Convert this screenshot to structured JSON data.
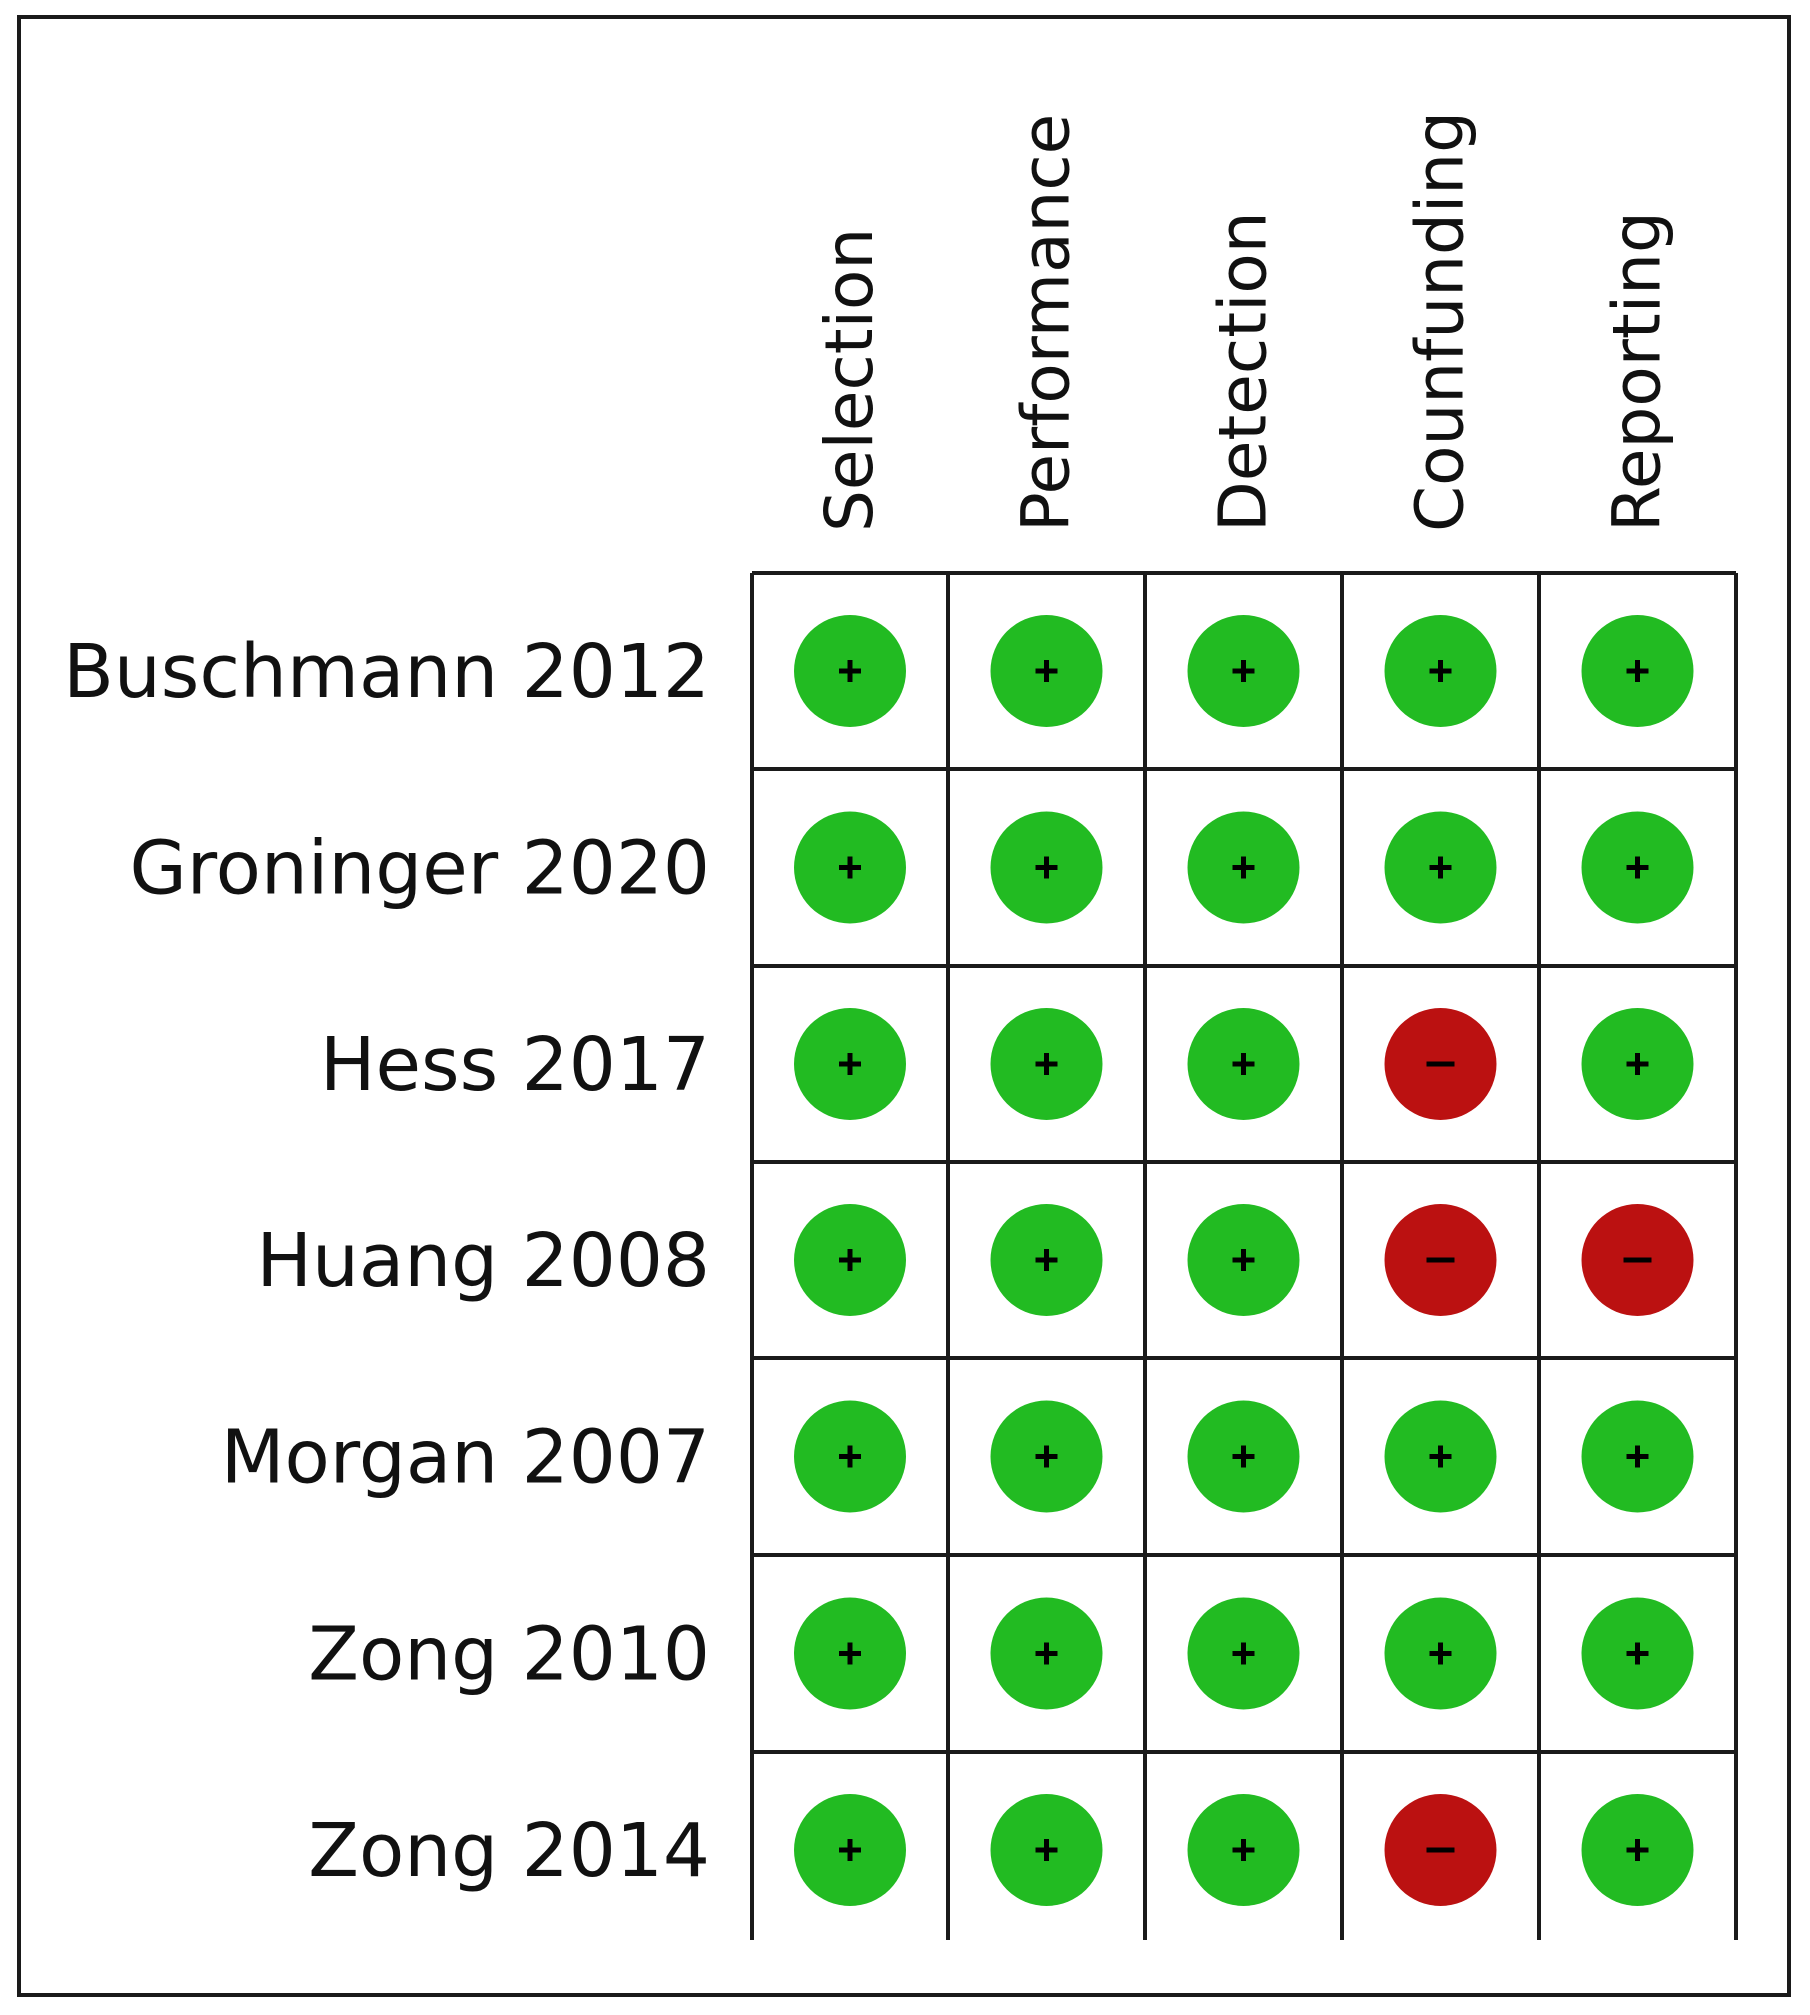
{
  "chart_data": {
    "type": "table",
    "columns": [
      "Selection",
      "Performance",
      "Detection",
      "Counfunding",
      "Reporting"
    ],
    "rows": [
      {
        "study": "Buschmann 2012",
        "judgements": [
          "+",
          "+",
          "+",
          "+",
          "+"
        ]
      },
      {
        "study": "Groninger 2020",
        "judgements": [
          "+",
          "+",
          "+",
          "+",
          "+"
        ]
      },
      {
        "study": "Hess 2017",
        "judgements": [
          "+",
          "+",
          "+",
          "-",
          "+"
        ]
      },
      {
        "study": "Huang 2008",
        "judgements": [
          "+",
          "+",
          "+",
          "-",
          "-"
        ]
      },
      {
        "study": "Morgan 2007",
        "judgements": [
          "+",
          "+",
          "+",
          "+",
          "+"
        ]
      },
      {
        "study": "Zong 2010",
        "judgements": [
          "+",
          "+",
          "+",
          "+",
          "+"
        ]
      },
      {
        "study": "Zong 2014",
        "judgements": [
          "+",
          "+",
          "+",
          "-",
          "+"
        ]
      }
    ],
    "legend_colors": {
      "+": "#22bb22",
      "-": "#bb1111"
    }
  }
}
